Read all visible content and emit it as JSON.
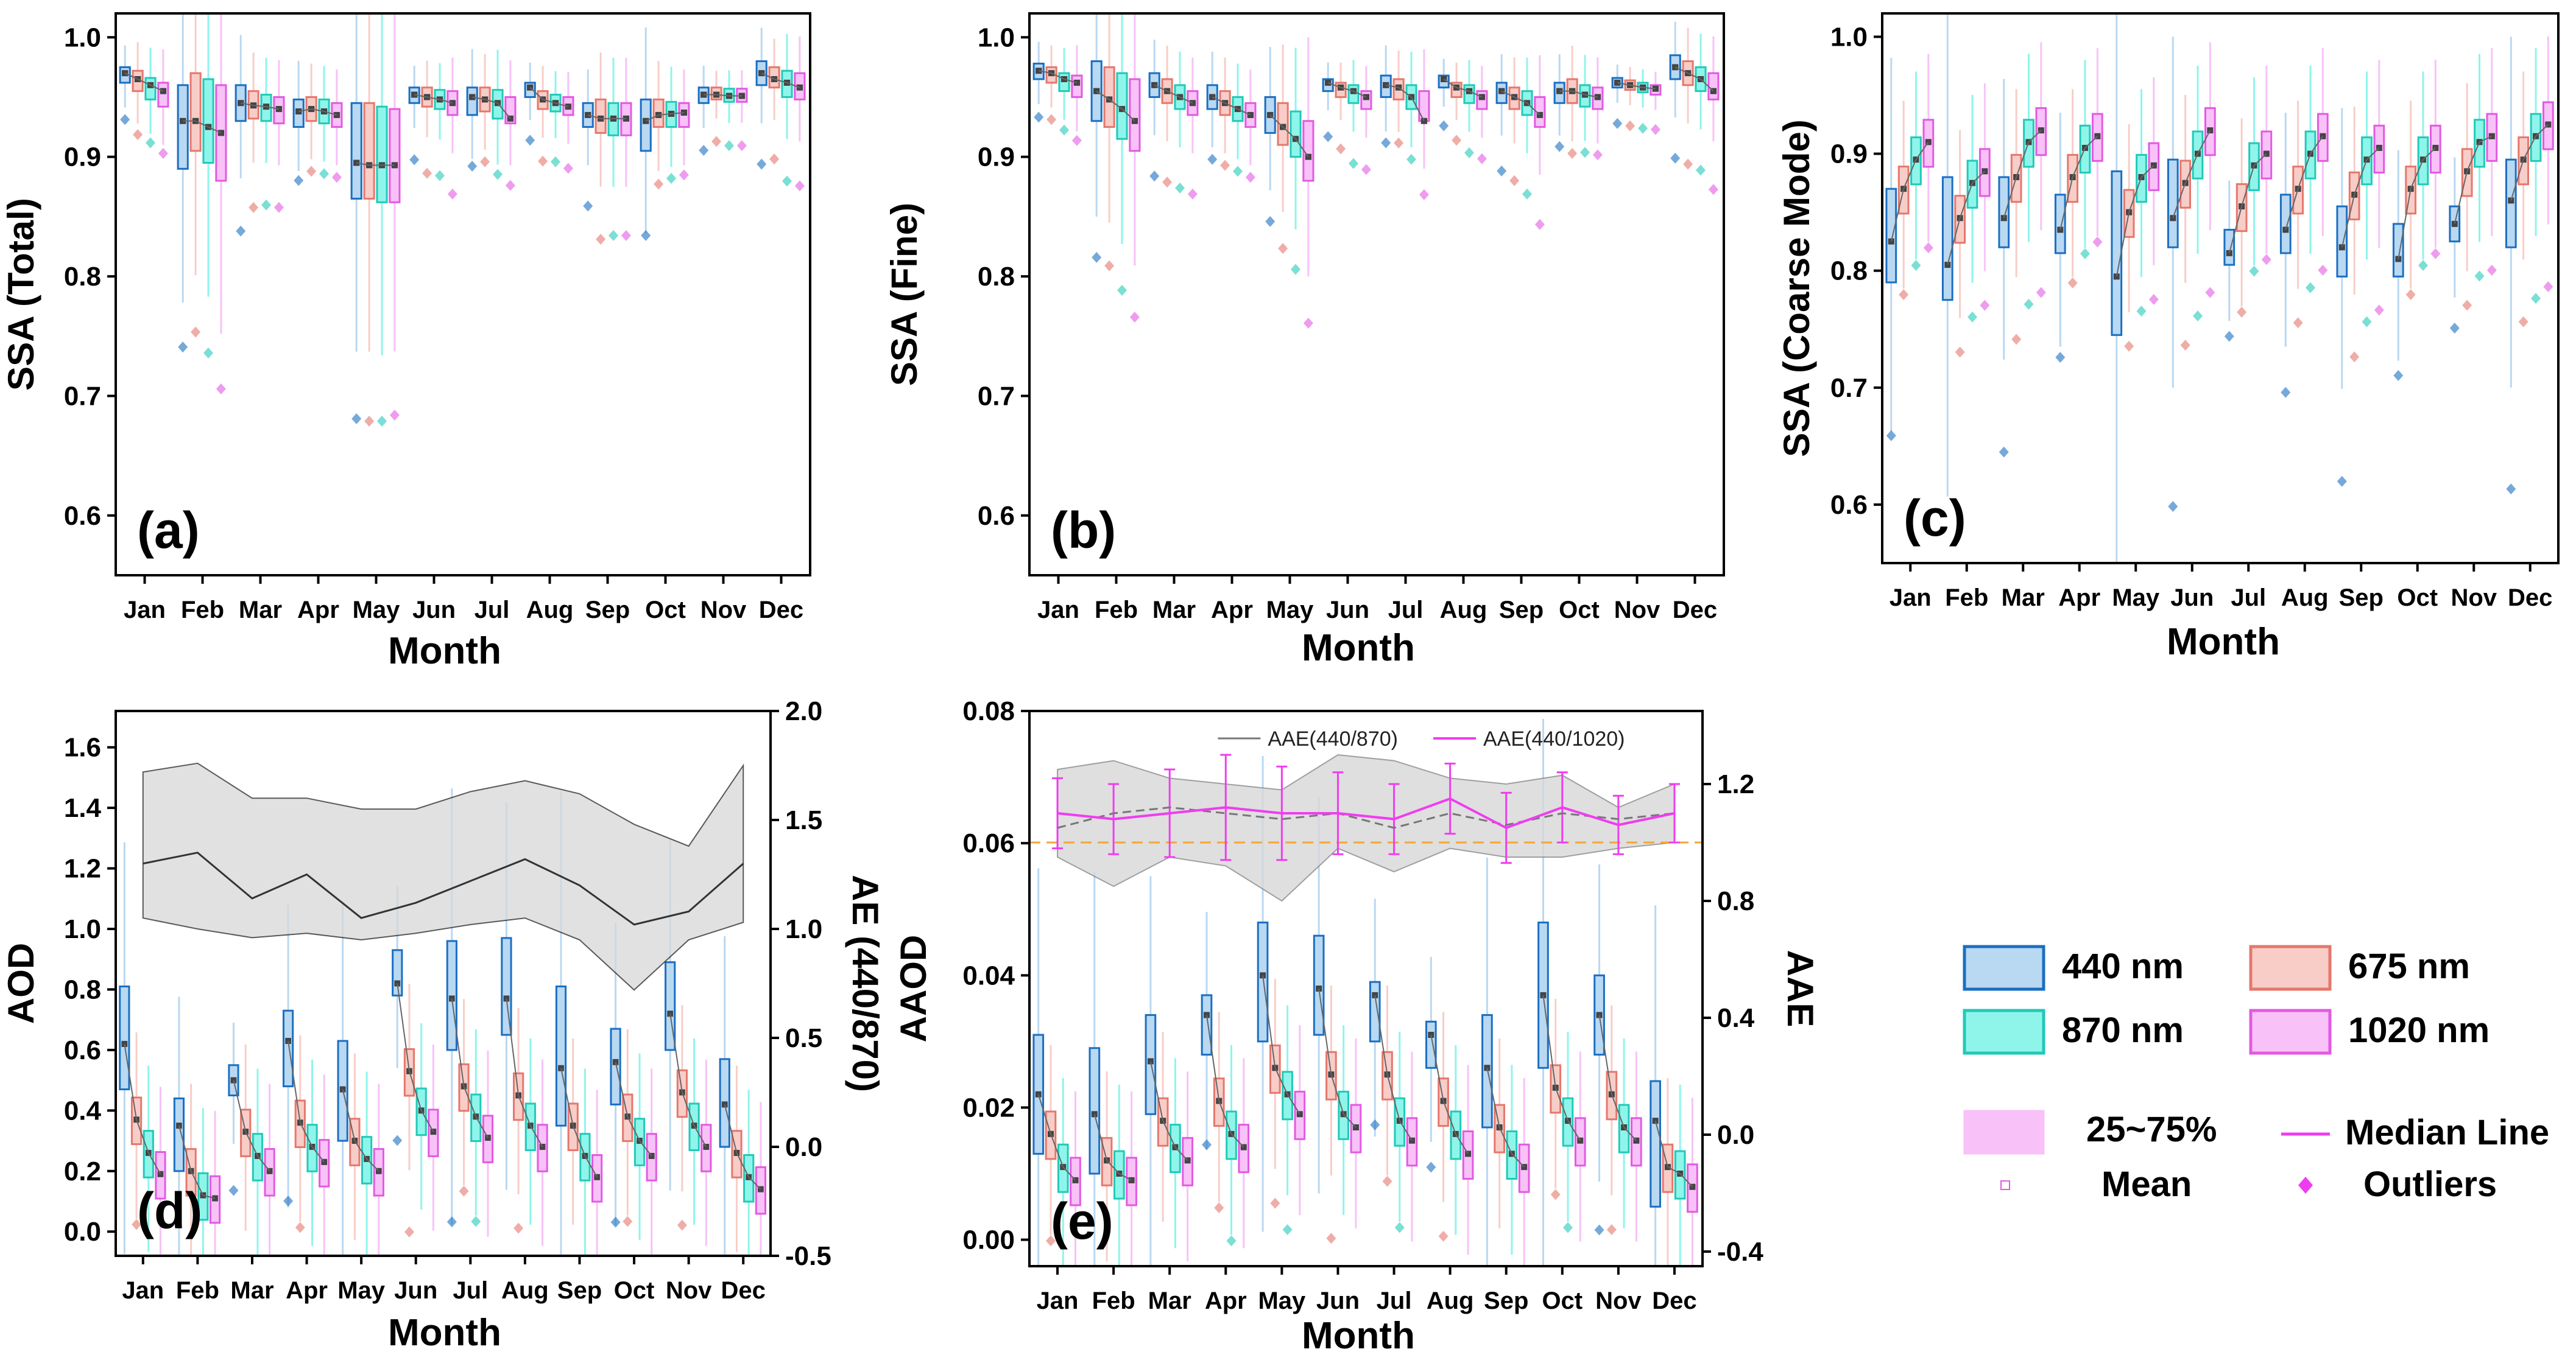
{
  "figure": {
    "months": [
      "Jan",
      "Feb",
      "Mar",
      "Apr",
      "May",
      "Jun",
      "Jul",
      "Aug",
      "Sep",
      "Oct",
      "Nov",
      "Dec"
    ],
    "colors": {
      "440": {
        "fill": "#b9d8f2",
        "stroke": "#1a6fc2"
      },
      "675": {
        "fill": "#f8cdc7",
        "stroke": "#e5776d"
      },
      "870": {
        "fill": "#8ff5ea",
        "stroke": "#22c9b8"
      },
      "1020": {
        "fill": "#f8c2f8",
        "stroke": "#e25ae2"
      },
      "median": "#444444",
      "ae_band": "#d8d8d8",
      "aae870": "#777777",
      "aae1020": "#f03cf0",
      "ref_line": "#f5a53a"
    },
    "legend": {
      "w440": "440 nm",
      "w870": "870 nm",
      "w675": "675 nm",
      "w1020": "1020 nm",
      "iqr": "25~75%",
      "median": "Median Line",
      "mean": "Mean",
      "outliers": "Outliers"
    }
  },
  "chart_data": [
    {
      "id": "a",
      "panel_label": "(a)",
      "type": "box",
      "ylabel": "SSA (Total)",
      "xlabel": "Month",
      "ylim": [
        0.55,
        1.02
      ],
      "yticks": [
        0.6,
        0.7,
        0.8,
        0.9,
        1.0
      ],
      "series": [
        {
          "name": "440 nm",
          "median": [
            0.97,
            0.93,
            0.945,
            0.938,
            0.895,
            0.952,
            0.95,
            0.958,
            0.935,
            0.93,
            0.952,
            0.97
          ],
          "q1": [
            0.962,
            0.89,
            0.93,
            0.925,
            0.865,
            0.945,
            0.935,
            0.95,
            0.925,
            0.905,
            0.945,
            0.96
          ],
          "q3": [
            0.975,
            0.96,
            0.96,
            0.948,
            0.945,
            0.958,
            0.958,
            0.962,
            0.945,
            0.948,
            0.958,
            0.98
          ]
        },
        {
          "name": "675 nm",
          "median": [
            0.965,
            0.93,
            0.943,
            0.94,
            0.893,
            0.95,
            0.948,
            0.948,
            0.932,
            0.935,
            0.952,
            0.965
          ],
          "q1": [
            0.955,
            0.905,
            0.932,
            0.93,
            0.865,
            0.942,
            0.938,
            0.94,
            0.92,
            0.925,
            0.948,
            0.958
          ],
          "q3": [
            0.972,
            0.97,
            0.955,
            0.95,
            0.945,
            0.958,
            0.958,
            0.955,
            0.948,
            0.948,
            0.958,
            0.975
          ]
        },
        {
          "name": "870 nm",
          "median": [
            0.96,
            0.925,
            0.942,
            0.938,
            0.893,
            0.948,
            0.945,
            0.945,
            0.932,
            0.936,
            0.951,
            0.962
          ],
          "q1": [
            0.948,
            0.895,
            0.93,
            0.928,
            0.862,
            0.94,
            0.932,
            0.938,
            0.918,
            0.925,
            0.946,
            0.95
          ],
          "q3": [
            0.966,
            0.965,
            0.952,
            0.948,
            0.942,
            0.956,
            0.956,
            0.952,
            0.945,
            0.946,
            0.957,
            0.972
          ]
        },
        {
          "name": "1020 nm",
          "median": [
            0.955,
            0.92,
            0.94,
            0.935,
            0.893,
            0.945,
            0.932,
            0.942,
            0.932,
            0.937,
            0.951,
            0.958
          ],
          "q1": [
            0.942,
            0.88,
            0.928,
            0.925,
            0.862,
            0.935,
            0.928,
            0.935,
            0.918,
            0.925,
            0.946,
            0.948
          ],
          "q3": [
            0.962,
            0.96,
            0.95,
            0.945,
            0.94,
            0.955,
            0.95,
            0.95,
            0.945,
            0.945,
            0.957,
            0.97
          ]
        }
      ]
    },
    {
      "id": "b",
      "panel_label": "(b)",
      "type": "box",
      "ylabel": "SSA (Fine)",
      "xlabel": "Month",
      "ylim": [
        0.55,
        1.02
      ],
      "yticks": [
        0.6,
        0.7,
        0.8,
        0.9,
        1.0
      ],
      "series": [
        {
          "name": "440 nm",
          "median": [
            0.972,
            0.955,
            0.96,
            0.95,
            0.935,
            0.962,
            0.96,
            0.965,
            0.955,
            0.955,
            0.962,
            0.975
          ],
          "q1": [
            0.965,
            0.93,
            0.95,
            0.94,
            0.92,
            0.955,
            0.95,
            0.958,
            0.945,
            0.945,
            0.958,
            0.965
          ],
          "q3": [
            0.978,
            0.98,
            0.97,
            0.96,
            0.95,
            0.965,
            0.968,
            0.968,
            0.962,
            0.962,
            0.966,
            0.985
          ]
        },
        {
          "name": "675 nm",
          "median": [
            0.97,
            0.948,
            0.955,
            0.945,
            0.925,
            0.958,
            0.958,
            0.958,
            0.95,
            0.955,
            0.96,
            0.97
          ],
          "q1": [
            0.962,
            0.925,
            0.945,
            0.935,
            0.91,
            0.95,
            0.948,
            0.95,
            0.94,
            0.945,
            0.956,
            0.96
          ],
          "q3": [
            0.975,
            0.975,
            0.965,
            0.955,
            0.945,
            0.962,
            0.965,
            0.962,
            0.958,
            0.965,
            0.964,
            0.98
          ]
        },
        {
          "name": "870 nm",
          "median": [
            0.965,
            0.94,
            0.95,
            0.94,
            0.915,
            0.955,
            0.95,
            0.955,
            0.945,
            0.952,
            0.958,
            0.965
          ],
          "q1": [
            0.955,
            0.915,
            0.94,
            0.93,
            0.9,
            0.945,
            0.94,
            0.945,
            0.935,
            0.942,
            0.954,
            0.955
          ],
          "q3": [
            0.97,
            0.97,
            0.96,
            0.95,
            0.938,
            0.96,
            0.96,
            0.96,
            0.955,
            0.96,
            0.962,
            0.975
          ]
        },
        {
          "name": "1020 nm",
          "median": [
            0.962,
            0.93,
            0.945,
            0.935,
            0.9,
            0.95,
            0.93,
            0.95,
            0.935,
            0.95,
            0.957,
            0.955
          ],
          "q1": [
            0.95,
            0.905,
            0.935,
            0.925,
            0.88,
            0.94,
            0.93,
            0.94,
            0.925,
            0.94,
            0.952,
            0.948
          ],
          "q3": [
            0.968,
            0.965,
            0.955,
            0.945,
            0.93,
            0.955,
            0.955,
            0.955,
            0.95,
            0.958,
            0.96,
            0.97
          ]
        }
      ]
    },
    {
      "id": "c",
      "panel_label": "(c)",
      "type": "box",
      "ylabel": "SSA (Coarse Mode)",
      "xlabel": "Month",
      "ylim": [
        0.55,
        1.02
      ],
      "yticks": [
        0.6,
        0.7,
        0.8,
        0.9,
        1.0
      ],
      "series": [
        {
          "name": "440 nm",
          "median": [
            0.825,
            0.805,
            0.845,
            0.835,
            0.795,
            0.845,
            0.815,
            0.835,
            0.82,
            0.81,
            0.84,
            0.86
          ],
          "q1": [
            0.79,
            0.775,
            0.82,
            0.815,
            0.745,
            0.82,
            0.805,
            0.815,
            0.795,
            0.795,
            0.825,
            0.82
          ],
          "q3": [
            0.87,
            0.88,
            0.88,
            0.865,
            0.885,
            0.895,
            0.835,
            0.865,
            0.855,
            0.84,
            0.855,
            0.895
          ]
        },
        {
          "name": "675 nm",
          "median": [
            0.87,
            0.845,
            0.88,
            0.88,
            0.85,
            0.875,
            0.855,
            0.87,
            0.865,
            0.87,
            0.885,
            0.895
          ]
        },
        {
          "name": "870 nm",
          "median": [
            0.895,
            0.875,
            0.91,
            0.905,
            0.88,
            0.9,
            0.89,
            0.9,
            0.895,
            0.895,
            0.91,
            0.915
          ]
        },
        {
          "name": "1020 nm",
          "median": [
            0.91,
            0.885,
            0.92,
            0.915,
            0.89,
            0.92,
            0.9,
            0.915,
            0.905,
            0.905,
            0.915,
            0.925
          ]
        }
      ]
    },
    {
      "id": "d",
      "panel_label": "(d)",
      "type": "box",
      "ylabel": "AOD",
      "y2label": "AE (440/870)",
      "xlabel": "Month",
      "ylim": [
        -0.08,
        1.72
      ],
      "yticks": [
        0.0,
        0.2,
        0.4,
        0.6,
        0.8,
        1.0,
        1.2,
        1.4,
        1.6
      ],
      "y2lim": [
        -0.5,
        2.0
      ],
      "y2ticks": [
        -0.5,
        0.0,
        0.5,
        1.0,
        1.5,
        2.0
      ],
      "series": [
        {
          "name": "440 nm",
          "median": [
            0.62,
            0.35,
            0.5,
            0.63,
            0.47,
            0.82,
            0.77,
            0.77,
            0.54,
            0.56,
            0.72,
            0.42
          ],
          "q1": [
            0.47,
            0.2,
            0.45,
            0.48,
            0.3,
            0.78,
            0.6,
            0.65,
            0.35,
            0.42,
            0.6,
            0.28
          ],
          "q3": [
            0.81,
            0.44,
            0.55,
            0.73,
            0.63,
            0.93,
            0.96,
            0.97,
            0.81,
            0.67,
            0.89,
            0.57
          ]
        },
        {
          "name": "675 nm",
          "median": [
            0.37,
            0.2,
            0.33,
            0.36,
            0.3,
            0.53,
            0.48,
            0.45,
            0.35,
            0.38,
            0.46,
            0.26
          ]
        },
        {
          "name": "870 nm",
          "median": [
            0.26,
            0.12,
            0.25,
            0.28,
            0.24,
            0.4,
            0.38,
            0.35,
            0.25,
            0.3,
            0.35,
            0.18
          ]
        },
        {
          "name": "1020 nm",
          "median": [
            0.19,
            0.11,
            0.2,
            0.23,
            0.2,
            0.33,
            0.31,
            0.28,
            0.18,
            0.25,
            0.28,
            0.14
          ]
        }
      ],
      "ae_mean": [
        1.3,
        1.35,
        1.14,
        1.25,
        1.05,
        1.12,
        1.22,
        1.32,
        1.2,
        1.02,
        1.08,
        1.3
      ],
      "ae_upper": [
        1.72,
        1.76,
        1.6,
        1.6,
        1.55,
        1.55,
        1.63,
        1.68,
        1.62,
        1.48,
        1.38,
        1.75
      ],
      "ae_lower": [
        1.05,
        1.0,
        0.96,
        0.98,
        0.95,
        0.98,
        1.02,
        1.05,
        0.95,
        0.72,
        0.95,
        1.03
      ]
    },
    {
      "id": "e",
      "panel_label": "(e)",
      "type": "box",
      "ylabel": "AAOD",
      "y2label": "AAE",
      "xlabel": "Month",
      "ylim": [
        -0.004,
        0.08
      ],
      "yticks": [
        0.0,
        0.02,
        0.04,
        0.06,
        0.08
      ],
      "y2lim": [
        -0.45,
        1.45
      ],
      "y2ticks": [
        -0.4,
        0.0,
        0.4,
        0.8,
        1.2
      ],
      "series": [
        {
          "name": "440 nm",
          "median": [
            0.022,
            0.019,
            0.027,
            0.034,
            0.04,
            0.038,
            0.037,
            0.031,
            0.026,
            0.037,
            0.034,
            0.018
          ],
          "q1": [
            0.013,
            0.01,
            0.019,
            0.028,
            0.03,
            0.031,
            0.03,
            0.026,
            0.017,
            0.026,
            0.028,
            0.005
          ],
          "q3": [
            0.031,
            0.029,
            0.034,
            0.037,
            0.048,
            0.046,
            0.039,
            0.033,
            0.034,
            0.048,
            0.04,
            0.024
          ]
        },
        {
          "name": "675 nm",
          "median": [
            0.016,
            0.012,
            0.018,
            0.021,
            0.026,
            0.025,
            0.025,
            0.021,
            0.017,
            0.023,
            0.022,
            0.011
          ]
        },
        {
          "name": "870 nm",
          "median": [
            0.011,
            0.01,
            0.014,
            0.016,
            0.022,
            0.019,
            0.018,
            0.016,
            0.013,
            0.018,
            0.017,
            0.01
          ]
        },
        {
          "name": "1020 nm",
          "median": [
            0.009,
            0.009,
            0.012,
            0.014,
            0.019,
            0.017,
            0.015,
            0.013,
            0.011,
            0.015,
            0.015,
            0.008
          ]
        }
      ],
      "legend_aae870": "AAE(440/870)",
      "legend_aae1020": "AAE(440/1020)",
      "aae870": [
        1.05,
        1.1,
        1.12,
        1.1,
        1.08,
        1.1,
        1.05,
        1.1,
        1.06,
        1.1,
        1.08,
        1.1
      ],
      "aae870_upper": [
        1.25,
        1.28,
        1.22,
        1.2,
        1.18,
        1.3,
        1.28,
        1.22,
        1.2,
        1.23,
        1.12,
        1.2
      ],
      "aae870_lower": [
        0.95,
        0.85,
        0.95,
        0.92,
        0.8,
        0.98,
        0.9,
        0.98,
        0.95,
        0.95,
        0.98,
        1.0
      ],
      "aae1020": [
        1.1,
        1.08,
        1.1,
        1.12,
        1.1,
        1.1,
        1.08,
        1.15,
        1.05,
        1.12,
        1.06,
        1.1
      ],
      "aae1020_err": [
        0.12,
        0.12,
        0.15,
        0.18,
        0.16,
        0.14,
        0.12,
        0.12,
        0.12,
        0.12,
        0.1,
        0.1
      ],
      "ref_line": 1.0
    }
  ]
}
